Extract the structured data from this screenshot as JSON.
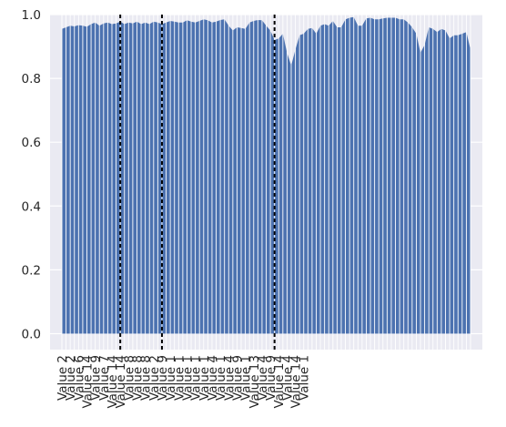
{
  "chart_data": {
    "type": "area",
    "title": "",
    "xlabel": "",
    "ylabel": "",
    "ylim": [
      -0.05,
      1.0
    ],
    "yticks": [
      0.0,
      0.2,
      0.4,
      0.6,
      0.8,
      1.0
    ],
    "ytick_labels": [
      "0.0",
      "0.2",
      "0.4",
      "0.6",
      "0.8",
      "1.0"
    ],
    "xtick_labels": [
      "Value 2",
      "Value 2",
      "Value 6",
      "Value 14",
      "Value 9",
      "Value 7",
      "Value 14",
      "Value 14",
      "Value 8",
      "Value 8",
      "Value 8",
      "Value 2",
      "Value 9",
      "Value 1",
      "Value 1",
      "Value 1",
      "Value 1",
      "Value 1",
      "Value 4",
      "Value 1",
      "Value 4",
      "Value 9",
      "Value 1",
      "Value 13",
      "Value 4",
      "Value 9",
      "Value 14",
      "Value 4",
      "Value 14",
      "Value 1"
    ],
    "label_every": 2,
    "grid": true,
    "colors": {
      "area": "#4c72b0",
      "axes_background": "#eaeaf2",
      "grid": "#ffffff",
      "vline": "#000000"
    },
    "vlines_at_index": [
      14,
      24,
      51
    ],
    "values": [
      0.955,
      0.96,
      0.965,
      0.963,
      0.967,
      0.965,
      0.962,
      0.97,
      0.975,
      0.965,
      0.972,
      0.975,
      0.97,
      0.972,
      0.978,
      0.97,
      0.975,
      0.972,
      0.978,
      0.97,
      0.975,
      0.97,
      0.978,
      0.975,
      0.97,
      0.975,
      0.98,
      0.978,
      0.975,
      0.975,
      0.982,
      0.978,
      0.975,
      0.98,
      0.985,
      0.982,
      0.975,
      0.978,
      0.983,
      0.985,
      0.965,
      0.95,
      0.96,
      0.958,
      0.955,
      0.975,
      0.98,
      0.983,
      0.982,
      0.965,
      0.95,
      0.92,
      0.925,
      0.94,
      0.88,
      0.84,
      0.89,
      0.935,
      0.94,
      0.955,
      0.958,
      0.94,
      0.965,
      0.97,
      0.965,
      0.98,
      0.96,
      0.96,
      0.985,
      0.99,
      0.992,
      0.965,
      0.965,
      0.988,
      0.99,
      0.985,
      0.985,
      0.988,
      0.99,
      0.99,
      0.99,
      0.985,
      0.985,
      0.975,
      0.96,
      0.94,
      0.88,
      0.905,
      0.96,
      0.955,
      0.945,
      0.955,
      0.95,
      0.925,
      0.935,
      0.935,
      0.94,
      0.945,
      0.89
    ]
  }
}
